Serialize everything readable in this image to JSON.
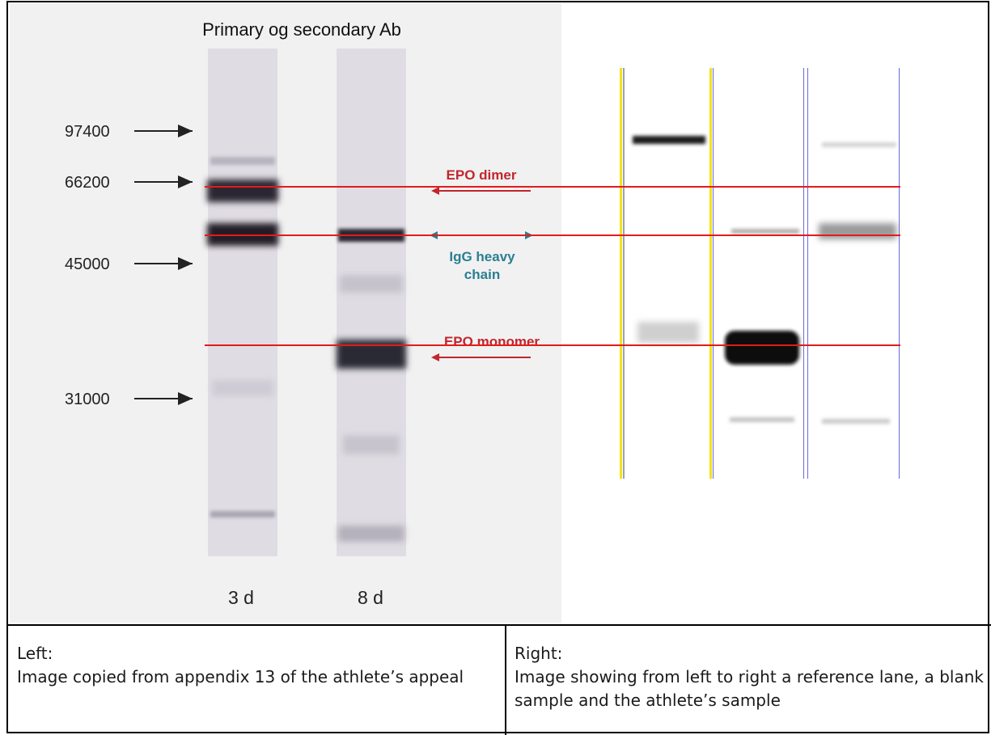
{
  "figure": {
    "title": "Primary og secondary Ab",
    "mw_markers": [
      "97400",
      "66200",
      "45000",
      "31000"
    ],
    "lane_labels": [
      "3 d",
      "8 d"
    ],
    "annotations": {
      "epo_dimer": "EPO dimer",
      "igg_line1": "IgG heavy",
      "igg_line2": "chain",
      "epo_monomer": "EPO monomer"
    },
    "colors": {
      "guide_line": "#e31b1b",
      "annotation_red": "#c2262e",
      "annotation_teal": "#2a7f92",
      "lane_divider_yellow": "#f2e21a",
      "lane_divider_blue": "#6a6ad8"
    }
  },
  "captions": {
    "left": {
      "heading": "Left:",
      "text": "Image copied from appendix 13 of the athlete’s appeal"
    },
    "right": {
      "heading": "Right:",
      "text": "Image showing from left to right a reference lane, a blank sample and the athlete’s sample"
    }
  }
}
